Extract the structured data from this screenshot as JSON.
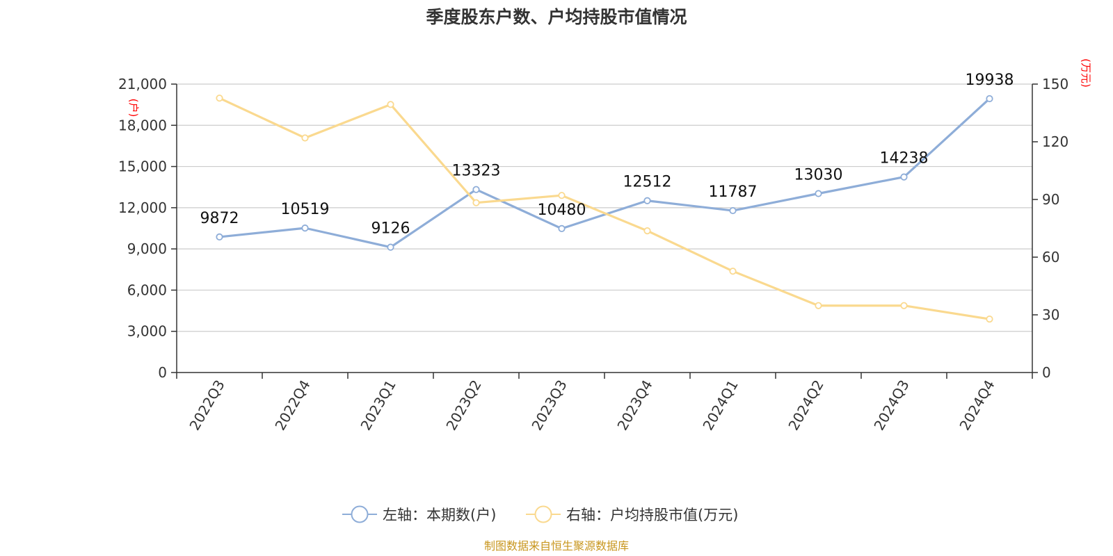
{
  "chart_data": {
    "type": "line",
    "title": "季度股东户数、户均持股市值情况",
    "categories": [
      "2022Q3",
      "2022Q4",
      "2023Q1",
      "2023Q2",
      "2023Q3",
      "2023Q4",
      "2024Q1",
      "2024Q2",
      "2024Q3",
      "2024Q4"
    ],
    "left_axis": {
      "unit_label": "(户)",
      "ylim": [
        0,
        21000
      ],
      "ticks": [
        0,
        3000,
        6000,
        9000,
        12000,
        15000,
        18000,
        21000
      ],
      "tick_labels": [
        "0",
        "3,000",
        "6,000",
        "9,000",
        "12,000",
        "15,000",
        "18,000",
        "21,000"
      ]
    },
    "right_axis": {
      "unit_label": "(万元)",
      "ylim": [
        0,
        150
      ],
      "ticks": [
        0,
        30,
        60,
        90,
        120,
        150
      ],
      "tick_labels": [
        "0",
        "30",
        "60",
        "90",
        "120",
        "150"
      ]
    },
    "grid": true,
    "series": [
      {
        "name": "左轴：本期数(户)",
        "axis": "left",
        "color": "#8eadd8",
        "values": [
          9872,
          10519,
          9126,
          13323,
          10480,
          12512,
          11787,
          13030,
          14238,
          19938
        ],
        "data_labels": [
          "9872",
          "10519",
          "9126",
          "13323",
          "10480",
          "12512",
          "11787",
          "13030",
          "14238",
          "19938"
        ]
      },
      {
        "name": "右轴：户均持股市值(万元)",
        "axis": "right",
        "color": "#fad98f",
        "values": [
          142.7,
          122,
          139.4,
          88.3,
          92.1,
          73.7,
          52.7,
          34.8,
          34.8,
          27.8
        ]
      }
    ],
    "legend_position": "bottom",
    "source": "制图数据来自恒生聚源数据库"
  }
}
